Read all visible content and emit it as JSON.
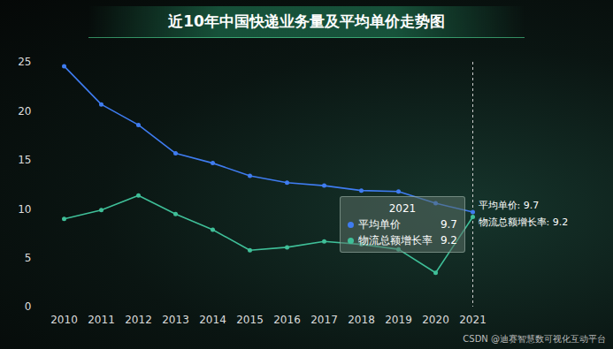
{
  "chart_data": {
    "type": "line",
    "title": "近10年中国快递业务量及平均单价走势图",
    "categories": [
      "2010",
      "2011",
      "2012",
      "2013",
      "2014",
      "2015",
      "2016",
      "2017",
      "2018",
      "2019",
      "2020",
      "2021"
    ],
    "series": [
      {
        "name": "平均单价",
        "color": "#3f7cf0",
        "marker": "circle",
        "values": [
          24.6,
          20.7,
          18.6,
          15.7,
          14.7,
          13.4,
          12.7,
          12.4,
          11.9,
          11.8,
          10.6,
          9.7
        ]
      },
      {
        "name": "物流总额增长率",
        "color": "#3fbf98",
        "marker": "circle",
        "values": [
          9.0,
          9.9,
          11.4,
          9.5,
          7.9,
          5.8,
          6.1,
          6.7,
          6.4,
          5.9,
          3.5,
          9.2
        ]
      }
    ],
    "ylim": [
      0,
      25
    ],
    "yticks": [
      0,
      5,
      10,
      15,
      20,
      25
    ],
    "grid": false,
    "annotations": [
      "平均单价: 9.7",
      "物流总额增长率: 9.2"
    ],
    "caption": "CSDN @迪赛智慧数可视化互动平台"
  }
}
